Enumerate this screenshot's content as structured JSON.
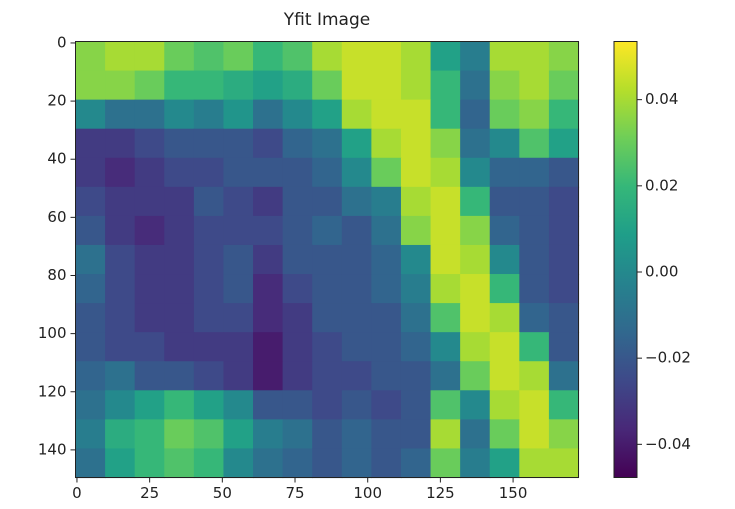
{
  "chart_data": {
    "type": "heatmap",
    "title": "Yfit Image",
    "colormap": "viridis",
    "xlim": [
      -0.5,
      172.5
    ],
    "ylim": [
      149.5,
      -0.5
    ],
    "xticks": [
      0,
      25,
      50,
      75,
      100,
      125,
      150
    ],
    "yticks": [
      0,
      20,
      40,
      60,
      80,
      100,
      120,
      140
    ],
    "clim": [
      -0.0477,
      0.0535
    ],
    "colorbar_ticks": [
      {
        "value": 0.04,
        "label": "0.04"
      },
      {
        "value": 0.02,
        "label": "0.02"
      },
      {
        "value": 0,
        "label": "0.00"
      },
      {
        "value": -0.02,
        "label": "−0.02"
      },
      {
        "value": -0.04,
        "label": "−0.04"
      }
    ],
    "z": [
      [
        0.035,
        0.04,
        0.04,
        0.03,
        0.025,
        0.03,
        0.02,
        0.025,
        0.04,
        0.045,
        0.045,
        0.04,
        0.01,
        -0.005,
        0.04,
        0.04,
        0.035
      ],
      [
        0.035,
        0.035,
        0.03,
        0.02,
        0.02,
        0.015,
        0.01,
        0.015,
        0.03,
        0.045,
        0.045,
        0.04,
        0.02,
        -0.01,
        0.035,
        0.04,
        0.03
      ],
      [
        0.0,
        -0.01,
        -0.01,
        0.0,
        -0.005,
        0.005,
        -0.01,
        0.0,
        0.01,
        0.04,
        0.045,
        0.045,
        0.02,
        -0.015,
        0.03,
        0.035,
        0.02
      ],
      [
        -0.03,
        -0.03,
        -0.025,
        -0.02,
        -0.02,
        -0.02,
        -0.025,
        -0.015,
        -0.01,
        0.01,
        0.04,
        0.045,
        0.035,
        -0.01,
        0.0,
        0.025,
        0.01
      ],
      [
        -0.03,
        -0.035,
        -0.03,
        -0.025,
        -0.025,
        -0.02,
        -0.02,
        -0.02,
        -0.015,
        0.0,
        0.03,
        0.045,
        0.04,
        0.0,
        -0.015,
        -0.015,
        -0.02
      ],
      [
        -0.025,
        -0.03,
        -0.03,
        -0.03,
        -0.02,
        -0.025,
        -0.03,
        -0.02,
        -0.02,
        -0.01,
        -0.005,
        0.04,
        0.045,
        0.02,
        -0.02,
        -0.02,
        -0.025
      ],
      [
        -0.02,
        -0.03,
        -0.035,
        -0.03,
        -0.025,
        -0.025,
        -0.025,
        -0.02,
        -0.015,
        -0.02,
        -0.01,
        0.035,
        0.045,
        0.035,
        -0.015,
        -0.02,
        -0.025
      ],
      [
        -0.01,
        -0.025,
        -0.03,
        -0.03,
        -0.025,
        -0.02,
        -0.03,
        -0.02,
        -0.02,
        -0.02,
        -0.015,
        0.0,
        0.045,
        0.04,
        0.0,
        -0.02,
        -0.025
      ],
      [
        -0.015,
        -0.025,
        -0.03,
        -0.03,
        -0.025,
        -0.02,
        -0.035,
        -0.025,
        -0.02,
        -0.02,
        -0.015,
        -0.005,
        0.04,
        0.045,
        0.02,
        -0.02,
        -0.025
      ],
      [
        -0.02,
        -0.025,
        -0.03,
        -0.03,
        -0.025,
        -0.025,
        -0.035,
        -0.03,
        -0.02,
        -0.02,
        -0.02,
        -0.01,
        0.025,
        0.045,
        0.04,
        -0.015,
        -0.02
      ],
      [
        -0.02,
        -0.025,
        -0.025,
        -0.03,
        -0.03,
        -0.03,
        -0.04,
        -0.03,
        -0.025,
        -0.02,
        -0.02,
        -0.015,
        0.0,
        0.04,
        0.045,
        0.02,
        -0.02
      ],
      [
        -0.015,
        -0.01,
        -0.02,
        -0.02,
        -0.025,
        -0.03,
        -0.04,
        -0.03,
        -0.025,
        -0.025,
        -0.02,
        -0.02,
        -0.01,
        0.03,
        0.045,
        0.04,
        -0.01
      ],
      [
        -0.01,
        0.0,
        0.01,
        0.02,
        0.01,
        0.0,
        -0.02,
        -0.02,
        -0.025,
        -0.02,
        -0.025,
        -0.02,
        0.025,
        0.0,
        0.04,
        0.045,
        0.02
      ],
      [
        -0.005,
        0.015,
        0.02,
        0.03,
        0.025,
        0.01,
        -0.005,
        -0.01,
        -0.02,
        -0.015,
        -0.02,
        -0.02,
        0.04,
        -0.01,
        0.03,
        0.045,
        0.035
      ],
      [
        -0.01,
        0.01,
        0.02,
        0.025,
        0.02,
        0.0,
        -0.01,
        -0.015,
        -0.02,
        -0.015,
        -0.02,
        -0.015,
        0.03,
        -0.005,
        0.01,
        0.04,
        0.04
      ]
    ]
  }
}
